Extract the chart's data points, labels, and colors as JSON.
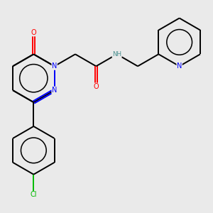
{
  "bg_color": "#eaeaea",
  "C": "#000000",
  "N": "#0000FF",
  "O": "#FF0000",
  "Cl": "#00BB00",
  "H_color": "#4A8F8F",
  "lw": 1.4,
  "fs": 7.0,
  "figsize": [
    3.0,
    3.0
  ],
  "dpi": 100
}
